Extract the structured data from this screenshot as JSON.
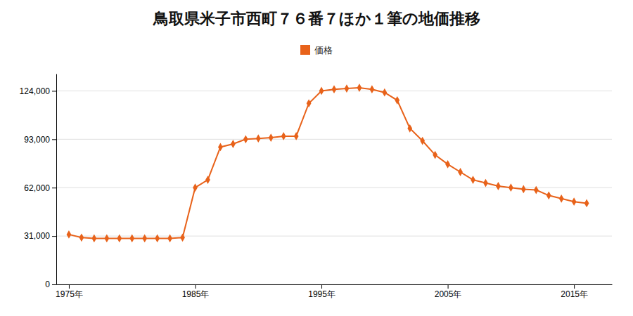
{
  "chart_data": {
    "type": "line",
    "title": "鳥取県米子市西町７６番７ほか１筆の地価推移",
    "x": [
      1975,
      1976,
      1977,
      1978,
      1979,
      1980,
      1981,
      1982,
      1983,
      1984,
      1985,
      1986,
      1987,
      1988,
      1989,
      1990,
      1991,
      1992,
      1993,
      1994,
      1995,
      1996,
      1997,
      1998,
      1999,
      2000,
      2001,
      2002,
      2003,
      2004,
      2005,
      2006,
      2007,
      2008,
      2009,
      2010,
      2011,
      2012,
      2013,
      2014,
      2015,
      2016
    ],
    "series": [
      {
        "name": "価格",
        "color": "#E8621A",
        "marker": "diamond",
        "values": [
          32000,
          30000,
          29500,
          29500,
          29500,
          29500,
          29500,
          29500,
          29500,
          30000,
          62000,
          67000,
          88000,
          90000,
          93000,
          93500,
          94000,
          95000,
          95000,
          116000,
          124000,
          125000,
          125500,
          126000,
          125000,
          123000,
          118000,
          100000,
          92000,
          83000,
          77000,
          72000,
          67000,
          65000,
          63000,
          62000,
          61000,
          60500,
          57000,
          55000,
          53000,
          52000
        ]
      }
    ],
    "xlim": [
      1974,
      2018
    ],
    "xticks": [
      {
        "value": 1975,
        "label": "1975年"
      },
      {
        "value": 1985,
        "label": "1985年"
      },
      {
        "value": 1995,
        "label": "1995年"
      },
      {
        "value": 2005,
        "label": "2005年"
      },
      {
        "value": 2015,
        "label": "2015年"
      }
    ],
    "ylim": [
      0,
      135000
    ],
    "yticks": [
      0,
      {
        "value": 31000,
        "label": "31,000"
      },
      {
        "value": 62000,
        "label": "62,000"
      },
      {
        "value": 93000,
        "label": "93,000"
      },
      {
        "value": 124000,
        "label": "124,000"
      }
    ],
    "grid": true,
    "legend": "top"
  }
}
